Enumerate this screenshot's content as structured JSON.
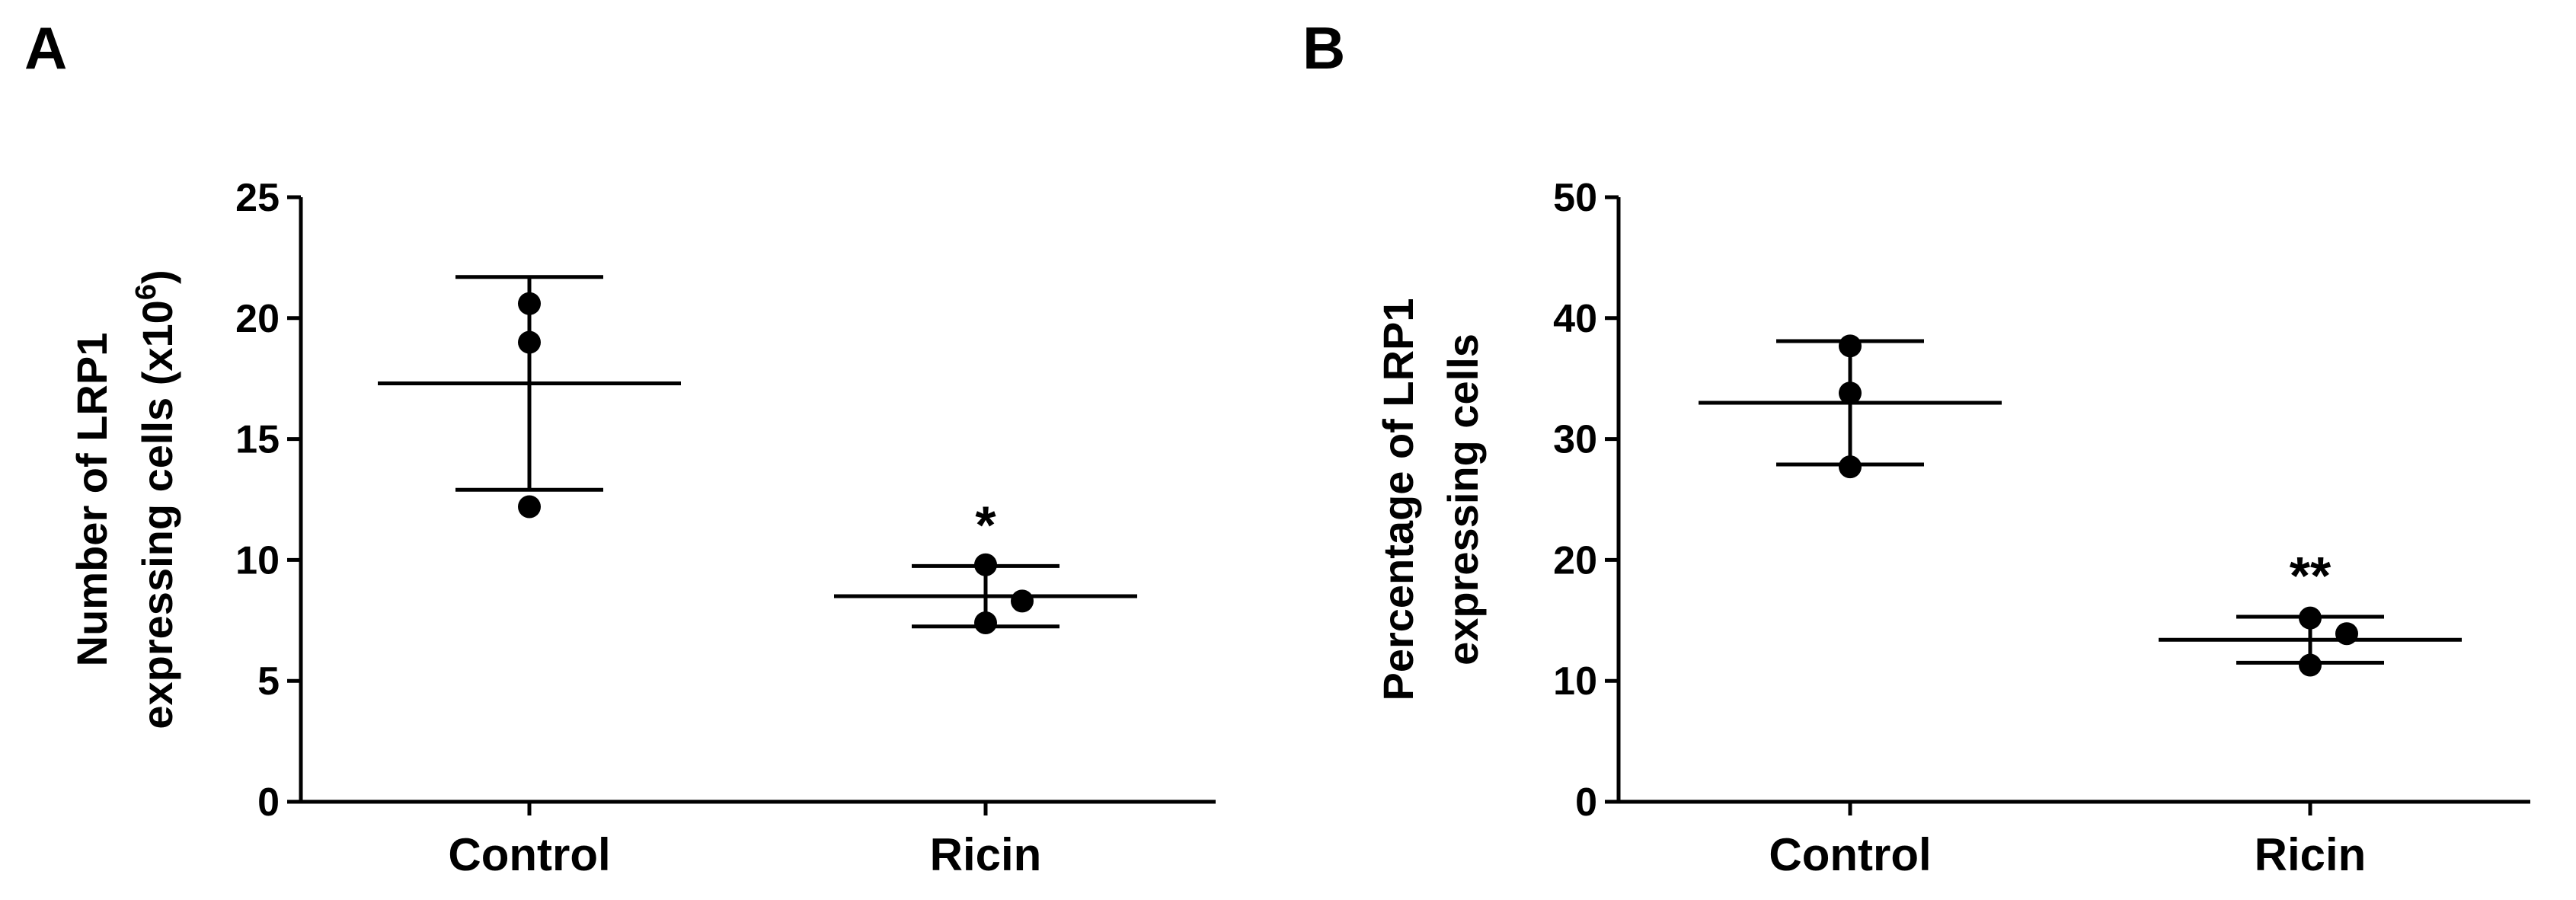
{
  "chart_data": [
    {
      "type": "dotplot",
      "panel": "A",
      "ylabel": [
        "Number of LRP1",
        "expressing cells (x10"
      ],
      "ylabel_sup": "6",
      "ylabel_end": ")",
      "categories": [
        "Control",
        "Ricin"
      ],
      "points": [
        [
          20.6,
          19.0,
          12.2
        ],
        [
          9.8,
          8.3,
          7.4
        ]
      ],
      "means": [
        17.3,
        8.5
      ],
      "sd": [
        4.4,
        1.25
      ],
      "annotations": [
        null,
        "*"
      ],
      "ylim": [
        0,
        25
      ],
      "yticks": [
        0,
        5,
        10,
        15,
        20,
        25
      ],
      "color": "#000000"
    },
    {
      "type": "dotplot",
      "panel": "B",
      "ylabel": [
        "Percentage of LRP1",
        "expressing cells"
      ],
      "categories": [
        "Control",
        "Ricin"
      ],
      "points": [
        [
          37.7,
          33.8,
          27.7
        ],
        [
          15.2,
          13.9,
          11.3
        ]
      ],
      "means": [
        33.0,
        13.4
      ],
      "sd": [
        5.1,
        1.9
      ],
      "annotations": [
        null,
        "**"
      ],
      "ylim": [
        0,
        50
      ],
      "yticks": [
        0,
        10,
        20,
        30,
        40,
        50
      ],
      "color": "#000000"
    }
  ]
}
